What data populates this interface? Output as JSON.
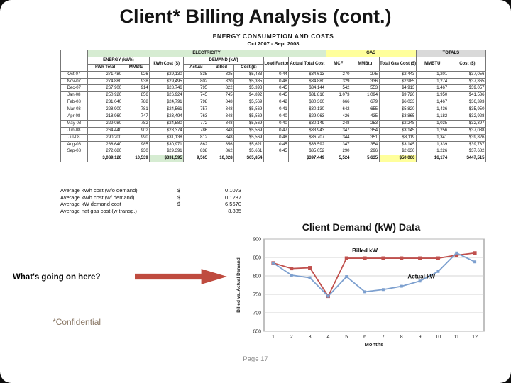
{
  "slide": {
    "title": "Client* Billing Analysis (cont.)",
    "callout": "What's going on here?",
    "confidential": "*Confidential",
    "page_label": "Page 17"
  },
  "table": {
    "caption": "ENERGY CONSUMPTION AND COSTS",
    "period": "Oct 2007 - Sept 2008",
    "sections": {
      "electricity": "ELECTRICITY",
      "gas": "GAS",
      "totals": "TOTALS"
    },
    "groups": {
      "energy": "ENERGY (kWh)",
      "demand": "DEMAND (kW)"
    },
    "headers": [
      "kWh Total",
      "MMBtu",
      "kWh Cost ($)",
      "Actual",
      "Billed",
      "Cost ($)",
      "Load Factor",
      "Actual Total Cost",
      "MCF",
      "MMBtu",
      "Total Gas Cost ($)",
      "MMBTU",
      "Cost ($)"
    ],
    "rows": [
      {
        "month": "Oct-07",
        "values": [
          "271,480",
          "926",
          "$29,130",
          "835",
          "835",
          "$5,483",
          "0.44",
          "$34,613",
          "270",
          "275",
          "$2,443",
          "1,201",
          "$37,056"
        ]
      },
      {
        "month": "Nov-07",
        "values": [
          "274,880",
          "938",
          "$29,495",
          "802",
          "820",
          "$5,385",
          "0.48",
          "$34,880",
          "329",
          "336",
          "$2,985",
          "1,274",
          "$37,865"
        ]
      },
      {
        "month": "Dec-07",
        "values": [
          "267,900",
          "914",
          "$28,746",
          "795",
          "822",
          "$5,398",
          "0.45",
          "$34,144",
          "542",
          "553",
          "$4,913",
          "1,467",
          "$39,057"
        ]
      },
      {
        "month": "Jan-08",
        "values": [
          "250,920",
          "856",
          "$26,924",
          "745",
          "745",
          "$4,892",
          "0.45",
          "$31,816",
          "1,073",
          "1,094",
          "$9,720",
          "1,950",
          "$41,536"
        ]
      },
      {
        "month": "Feb-08",
        "values": [
          "231,040",
          "788",
          "$24,791",
          "798",
          "848",
          "$5,569",
          "0.42",
          "$30,360",
          "666",
          "679",
          "$6,033",
          "1,467",
          "$36,393"
        ]
      },
      {
        "month": "Mar-08",
        "values": [
          "228,900",
          "781",
          "$24,561",
          "757",
          "848",
          "$5,569",
          "0.41",
          "$30,130",
          "642",
          "655",
          "$5,820",
          "1,436",
          "$35,950"
        ]
      },
      {
        "month": "Apr-08",
        "values": [
          "218,960",
          "747",
          "$23,494",
          "763",
          "848",
          "$5,569",
          "0.40",
          "$29,063",
          "426",
          "435",
          "$3,865",
          "1,182",
          "$32,928"
        ]
      },
      {
        "month": "May-08",
        "values": [
          "229,080",
          "782",
          "$24,580",
          "772",
          "848",
          "$5,569",
          "0.40",
          "$30,149",
          "248",
          "253",
          "$2,248",
          "1,035",
          "$32,397"
        ]
      },
      {
        "month": "Jun-08",
        "values": [
          "264,440",
          "902",
          "$28,374",
          "786",
          "848",
          "$5,569",
          "0.47",
          "$33,943",
          "347",
          "354",
          "$3,145",
          "1,256",
          "$37,088"
        ]
      },
      {
        "month": "Jul-08",
        "values": [
          "290,200",
          "990",
          "$31,138",
          "812",
          "848",
          "$5,569",
          "0.48",
          "$36,707",
          "344",
          "351",
          "$3,119",
          "1,341",
          "$39,826"
        ]
      },
      {
        "month": "Aug-08",
        "values": [
          "288,640",
          "985",
          "$30,971",
          "862",
          "856",
          "$5,621",
          "0.45",
          "$36,592",
          "347",
          "354",
          "$3,145",
          "1,339",
          "$39,737"
        ]
      },
      {
        "month": "Sep-08",
        "values": [
          "272,680",
          "930",
          "$29,391",
          "838",
          "862",
          "$5,661",
          "0.45",
          "$35,052",
          "290",
          "296",
          "$2,630",
          "1,226",
          "$37,682"
        ]
      }
    ],
    "totals": {
      "month": "",
      "values": [
        "3,089,120",
        "10,539",
        "$331,595",
        "9,565",
        "10,028",
        "$65,854",
        "",
        "$397,449",
        "5,524",
        "5,635",
        "$50,066",
        "16,174",
        "$447,515"
      ]
    }
  },
  "averages": [
    {
      "label": "Average kWh cost (w/o demand)",
      "currency": "$",
      "value": "0.1073"
    },
    {
      "label": "Average kWh cost (w/ demand)",
      "currency": "$",
      "value": "0.1287"
    },
    {
      "label": "Average kW demand cost",
      "currency": "$",
      "value": "6.5670"
    },
    {
      "label": "Average nat gas cost (w transp.)",
      "currency": "",
      "value": "8.885"
    }
  ],
  "chart_data": {
    "type": "line",
    "title": "Client Demand (kW) Data",
    "xlabel": "Months",
    "ylabel": "Billed vs. Actual Demand",
    "x": [
      1,
      2,
      3,
      4,
      5,
      6,
      7,
      8,
      9,
      10,
      11,
      12
    ],
    "ylim": [
      650,
      900
    ],
    "ytick_step": 50,
    "grid": true,
    "legend_position": "inline-labels",
    "series": [
      {
        "name": "Billed kW",
        "color": "#c0504d",
        "values": [
          835,
          820,
          822,
          745,
          848,
          848,
          848,
          848,
          848,
          848,
          856,
          862
        ]
      },
      {
        "name": "Actual kW",
        "color": "#7da0cf",
        "values": [
          835,
          802,
          795,
          745,
          798,
          757,
          763,
          772,
          786,
          812,
          862,
          838
        ]
      }
    ]
  },
  "colors": {
    "electricity_band": "#d6ecd2",
    "gas_band": "#ffff9c",
    "totals_band": "#d9d9d9",
    "arrow_red": "#bf4b3f",
    "billed_series": "#c0504d",
    "actual_series": "#7da0cf"
  }
}
